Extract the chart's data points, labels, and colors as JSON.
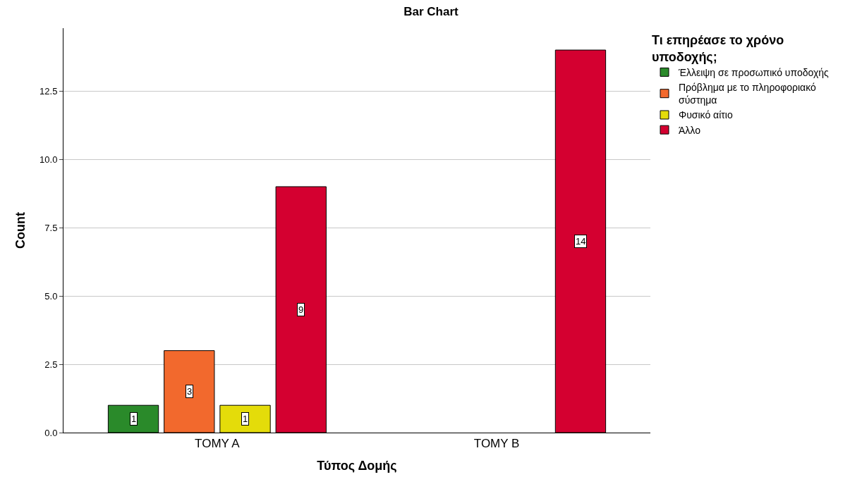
{
  "chart_data": {
    "type": "bar",
    "title": "Bar Chart",
    "xlabel": "Τύπος Δομής",
    "ylabel": "Count",
    "legend_title": "Τι επηρέασε το χρόνο υποδοχής;",
    "categories": [
      "ΤΟΜΥ Α",
      "ΤΟΜΥ Β"
    ],
    "series": [
      {
        "name": "Έλλειψη σε προσωπικό υποδοχής",
        "color": "#2a8a2a",
        "values": [
          1,
          null
        ]
      },
      {
        "name": "Πρόβλημα με το πληροφοριακό σύστημα",
        "color": "#f2692d",
        "values": [
          3,
          null
        ]
      },
      {
        "name": "Φυσικό αίτιο",
        "color": "#e4dc0a",
        "values": [
          1,
          null
        ]
      },
      {
        "name": "Άλλο",
        "color": "#d40030",
        "values": [
          9,
          14
        ]
      }
    ],
    "ylim": [
      0,
      14.8
    ],
    "yticks": [
      {
        "value": 0,
        "label": "0.0"
      },
      {
        "value": 2.5,
        "label": "2.5"
      },
      {
        "value": 5,
        "label": "5.0"
      },
      {
        "value": 7.5,
        "label": "7.5"
      },
      {
        "value": 10,
        "label": "10.0"
      },
      {
        "value": 12.5,
        "label": "12.5"
      }
    ],
    "grid": "y",
    "legend": "top right",
    "data_labels": true
  }
}
